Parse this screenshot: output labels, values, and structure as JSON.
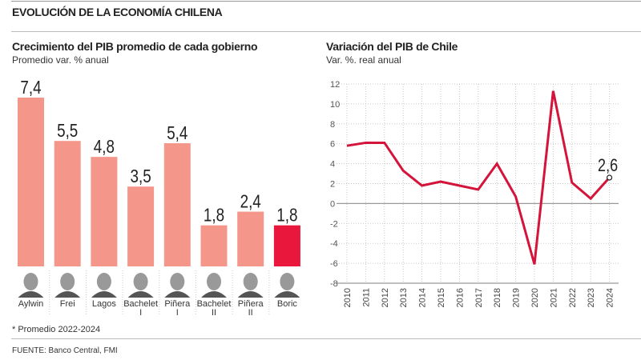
{
  "header": {
    "title": "EVOLUCIÓN DE LA ECONOMÍA CHILENA"
  },
  "footer": {
    "footnote": "* Promedio 2022-2024",
    "source": "FUENTE: Banco Central, FMI"
  },
  "colors": {
    "bar": "#f4978a",
    "highlight": "#e8173b",
    "line": "#d4143a",
    "grid": "#c8c8c8",
    "zero": "#999999"
  },
  "chart_data": [
    {
      "type": "bar",
      "title": "Crecimiento del PIB promedio de cada gobierno",
      "subtitle": "Promedio var. % anual",
      "categories": [
        "Aylwin",
        "Frei",
        "Lagos",
        "Bachelet I",
        "Piñera I",
        "Bachelet II",
        "Piñera II",
        "Boric"
      ],
      "category_lines": [
        [
          "Aylwin"
        ],
        [
          "Frei"
        ],
        [
          "Lagos"
        ],
        [
          "Bachelet",
          "I"
        ],
        [
          "Piñera",
          "I"
        ],
        [
          "Bachelet",
          "II"
        ],
        [
          "Piñera",
          "II"
        ],
        [
          "Boric"
        ]
      ],
      "values": [
        7.4,
        5.5,
        4.8,
        3.5,
        5.4,
        1.8,
        2.4,
        1.8
      ],
      "labels": [
        "7,4",
        "5,5",
        "4,8",
        "3,5",
        "5,4",
        "1,8",
        "2,4",
        "1,8"
      ],
      "highlight_index": 7,
      "ylim": [
        0,
        7.4
      ]
    },
    {
      "type": "line",
      "title": "Variación del PIB de Chile",
      "subtitle": "Var. %. real anual",
      "x": [
        2010,
        2011,
        2012,
        2013,
        2014,
        2015,
        2016,
        2017,
        2018,
        2019,
        2020,
        2021,
        2022,
        2023,
        2024
      ],
      "series": [
        {
          "name": "PIB",
          "values": [
            5.8,
            6.1,
            6.1,
            3.3,
            1.8,
            2.2,
            1.8,
            1.4,
            4.0,
            0.7,
            -6.1,
            11.3,
            2.1,
            0.5,
            2.6
          ]
        }
      ],
      "yticks": [
        12,
        10,
        8,
        6,
        4,
        2,
        0,
        -2,
        -4,
        -6,
        -8
      ],
      "ylim": [
        -8,
        12
      ],
      "grid": true,
      "annotation": {
        "x": 2024,
        "label": "2,6"
      }
    }
  ]
}
